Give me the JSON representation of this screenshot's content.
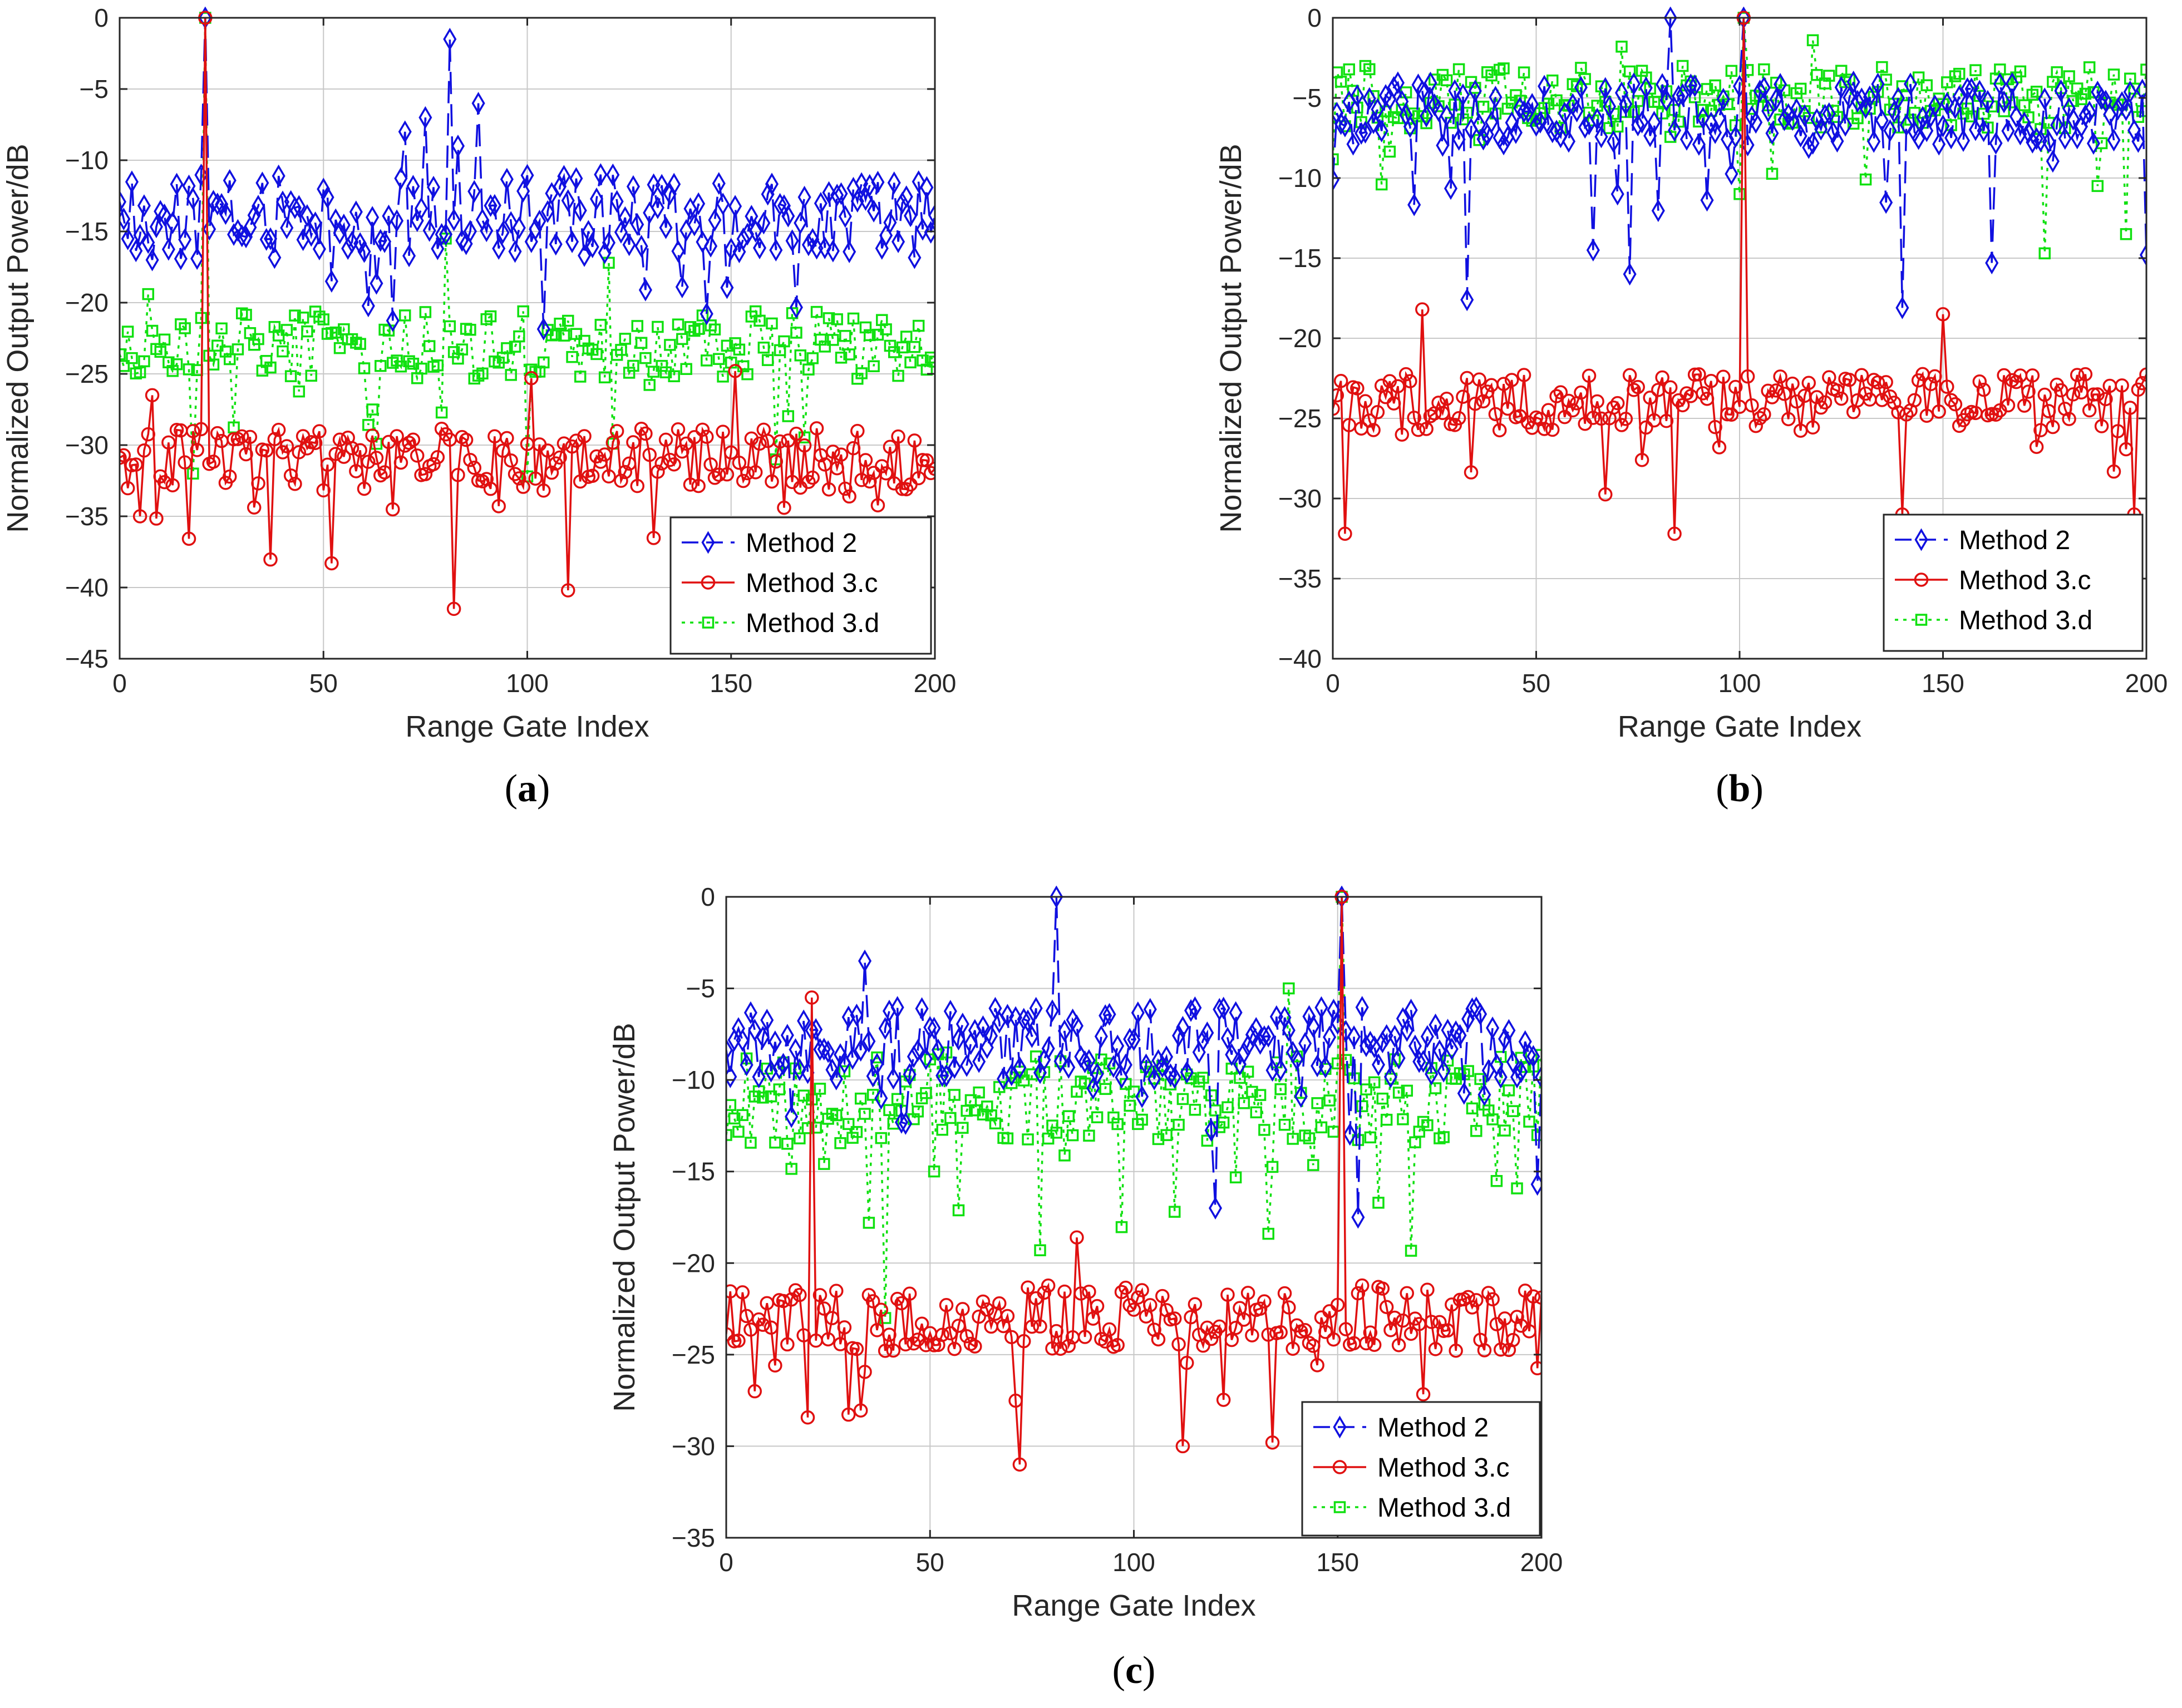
{
  "colors": {
    "method2": "#1010e0",
    "method3c": "#e01010",
    "method3d": "#10e010",
    "grid": "#c8c8c8",
    "axis": "#262626"
  },
  "chart_data": [
    {
      "type": "line",
      "panel_label": "(a)",
      "xlabel": "Range Gate Index",
      "ylabel": "Normalized Output Power/dB",
      "xlim": [
        0,
        200
      ],
      "ylim": [
        -45,
        0
      ],
      "xticks": [
        0,
        50,
        100,
        150,
        200
      ],
      "yticks": [
        -45,
        -40,
        -35,
        -30,
        -25,
        -20,
        -15,
        -10,
        -5,
        0
      ],
      "grid": "on",
      "legend_position": "bottom-right",
      "peak": {
        "x": 21,
        "y": 0
      },
      "series": [
        {
          "name": "Method 2",
          "style": "dashed",
          "marker": "diamond",
          "peak_y": 0,
          "base": -14,
          "amp": 3,
          "features": [
            [
              81,
              -1.5
            ],
            [
              75,
              -7
            ],
            [
              88,
              -6
            ],
            [
              70,
              -8
            ],
            [
              8,
              -17
            ],
            [
              52,
              -18.5
            ],
            [
              83,
              -9
            ]
          ]
        },
        {
          "name": "Method 3.c",
          "style": "solid",
          "marker": "circle",
          "peak_y": 0,
          "base": -31,
          "amp": 2.2,
          "features": [
            [
              82,
              -41.5
            ],
            [
              110,
              -40.2
            ],
            [
              52,
              -38.3
            ],
            [
              5,
              -35
            ],
            [
              101,
              -25.3
            ],
            [
              151,
              -24.8
            ],
            [
              8,
              -26.5
            ]
          ]
        },
        {
          "name": "Method 3.d",
          "style": "dotted",
          "marker": "square",
          "peak_y": 0,
          "base": -23,
          "amp": 2.4,
          "features": [
            [
              80,
              -15.5
            ],
            [
              120,
              -17.2
            ],
            [
              7,
              -19.4
            ],
            [
              100,
              -32.2
            ],
            [
              18,
              -32
            ],
            [
              161,
              -31
            ]
          ]
        }
      ]
    },
    {
      "type": "line",
      "panel_label": "(b)",
      "xlabel": "Range Gate Index",
      "ylabel": "Normalized Output Power/dB",
      "xlim": [
        0,
        200
      ],
      "ylim": [
        -40,
        0
      ],
      "xticks": [
        0,
        50,
        100,
        150,
        200
      ],
      "yticks": [
        -40,
        -35,
        -30,
        -25,
        -20,
        -15,
        -10,
        -5,
        0
      ],
      "grid": "on",
      "legend_position": "bottom-right",
      "peak": {
        "x": 101,
        "y": 0
      },
      "series": [
        {
          "name": "Method 2",
          "style": "dashed",
          "marker": "diamond",
          "peak_y": 0,
          "base": -6,
          "amp": 2,
          "features": [
            [
              83,
              0
            ],
            [
              33,
              -17.6
            ],
            [
              140,
              -18.1
            ],
            [
              73,
              -16
            ],
            [
              64,
              -14.5
            ],
            [
              162,
              -15.3
            ],
            [
              200,
              -14.8
            ]
          ]
        },
        {
          "name": "Method 3.c",
          "style": "solid",
          "marker": "circle",
          "peak_y": 0,
          "base": -24,
          "amp": 1.8,
          "features": [
            [
              3,
              -32.2
            ],
            [
              84,
              -32.2
            ],
            [
              150,
              -18.5
            ],
            [
              22,
              -18.2
            ],
            [
              140,
              -31
            ],
            [
              197,
              -31
            ]
          ]
        },
        {
          "name": "Method 3.d",
          "style": "dotted",
          "marker": "square",
          "peak_y": 0,
          "base": -5,
          "amp": 2,
          "features": [
            [
              100,
              -11
            ],
            [
              175,
              -14.7
            ],
            [
              195,
              -13.5
            ],
            [
              12,
              -10.4
            ],
            [
              118,
              -1.4
            ],
            [
              71,
              -1.8
            ]
          ]
        }
      ]
    },
    {
      "type": "line",
      "panel_label": "(c)",
      "xlabel": "Range Gate Index",
      "ylabel": "Normalized Output Power/dB",
      "xlim": [
        0,
        200
      ],
      "ylim": [
        -35,
        0
      ],
      "xticks": [
        0,
        50,
        100,
        150,
        200
      ],
      "yticks": [
        -35,
        -30,
        -25,
        -20,
        -15,
        -10,
        -5,
        0
      ],
      "grid": "on",
      "legend_position": "bottom-right",
      "peak": {
        "x": 151,
        "y": 0
      },
      "series": [
        {
          "name": "Method 2",
          "style": "dashed",
          "marker": "diamond",
          "peak_y": 0,
          "base": -8,
          "amp": 2,
          "features": [
            [
              81,
              0
            ],
            [
              155,
              -17.5
            ],
            [
              120,
              -17
            ],
            [
              199,
              -15.7
            ],
            [
              16,
              -12
            ],
            [
              34,
              -3.5
            ]
          ]
        },
        {
          "name": "Method 3.c",
          "style": "solid",
          "marker": "circle",
          "peak_y": 0,
          "base": -23,
          "amp": 1.8,
          "features": [
            [
              21,
              -5.5
            ],
            [
              72,
              -31
            ],
            [
              112,
              -30
            ],
            [
              134,
              -29.8
            ],
            [
              86,
              -18.6
            ],
            [
              7,
              -27
            ]
          ]
        },
        {
          "name": "Method 3.d",
          "style": "dotted",
          "marker": "square",
          "peak_y": 0,
          "base": -11,
          "amp": 2.5,
          "features": [
            [
              39,
              -23
            ],
            [
              77,
              -19.3
            ],
            [
              133,
              -18.4
            ],
            [
              35,
              -17.8
            ],
            [
              110,
              -17.2
            ],
            [
              138,
              -5
            ]
          ]
        }
      ]
    }
  ]
}
